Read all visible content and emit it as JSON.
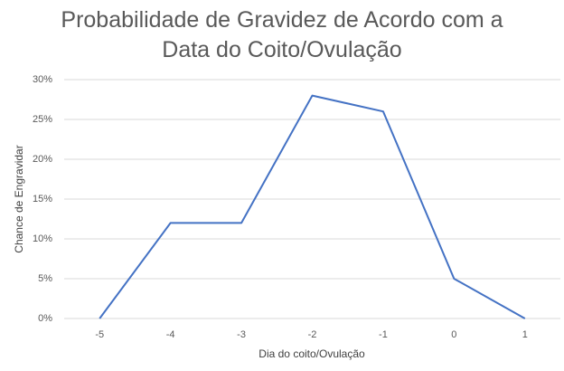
{
  "chart_data": {
    "type": "line",
    "title": "Probabilidade de Gravidez de Acordo com a Data do Coito/Ovulação",
    "x_label": "Dia do coito/Ovulação",
    "y_label": "Chance de Engravidar",
    "categories": [
      "-5",
      "-4",
      "-3",
      "-2",
      "-1",
      "0",
      "1"
    ],
    "values": [
      0,
      12,
      12,
      28,
      26,
      5,
      0
    ],
    "color": "#4472c4",
    "ylim": [
      0,
      30
    ],
    "yticks": [
      {
        "value": 0,
        "label": "0%"
      },
      {
        "value": 5,
        "label": "5%"
      },
      {
        "value": 10,
        "label": "10%"
      },
      {
        "value": 15,
        "label": "15%"
      },
      {
        "value": 20,
        "label": "20%"
      },
      {
        "value": 25,
        "label": "25%"
      },
      {
        "value": 30,
        "label": "30%"
      }
    ],
    "grid": true
  }
}
